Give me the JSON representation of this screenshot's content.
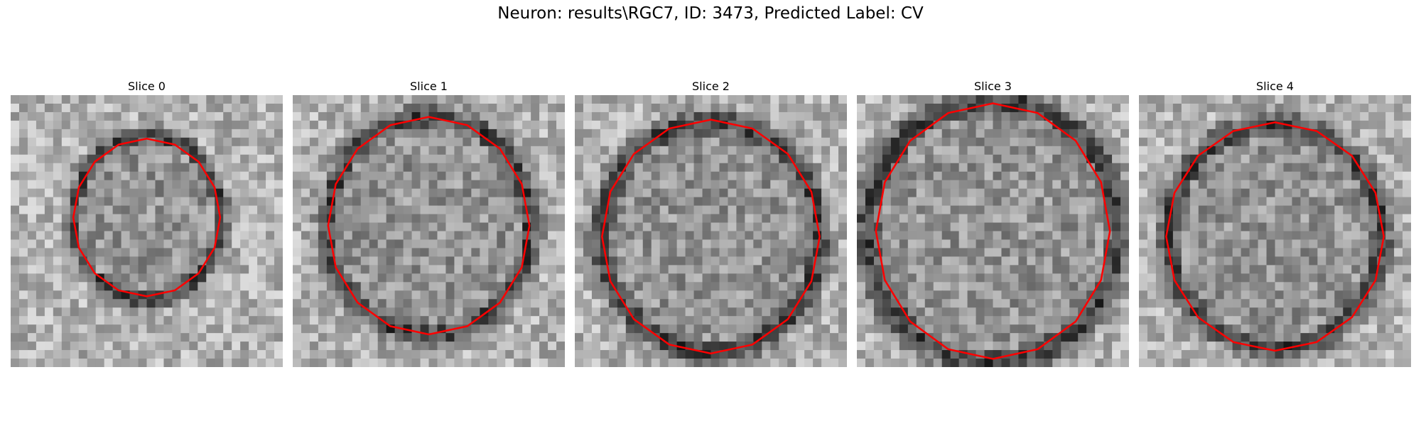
{
  "figure": {
    "title": "Neuron: results\\RGC7, ID: 3473, Predicted Label: CV"
  },
  "panels": [
    {
      "title": "Slice 0",
      "seed": 11,
      "ring": [
        0.5,
        0.45,
        0.27,
        0.3
      ],
      "contour_r": [
        0.27,
        0.29
      ]
    },
    {
      "title": "Slice 1",
      "seed": 23,
      "ring": [
        0.5,
        0.48,
        0.37,
        0.4
      ],
      "contour_r": [
        0.37,
        0.4
      ]
    },
    {
      "title": "Slice 2",
      "seed": 37,
      "ring": [
        0.5,
        0.52,
        0.4,
        0.42
      ],
      "contour_r": [
        0.4,
        0.43
      ]
    },
    {
      "title": "Slice 3",
      "seed": 41,
      "ring": [
        0.5,
        0.5,
        0.46,
        0.48
      ],
      "contour_r": [
        0.43,
        0.47
      ]
    },
    {
      "title": "Slice 4",
      "seed": 53,
      "ring": [
        0.5,
        0.52,
        0.39,
        0.41
      ],
      "contour_r": [
        0.4,
        0.42
      ]
    }
  ],
  "colors": {
    "contour": "#ff0000"
  }
}
